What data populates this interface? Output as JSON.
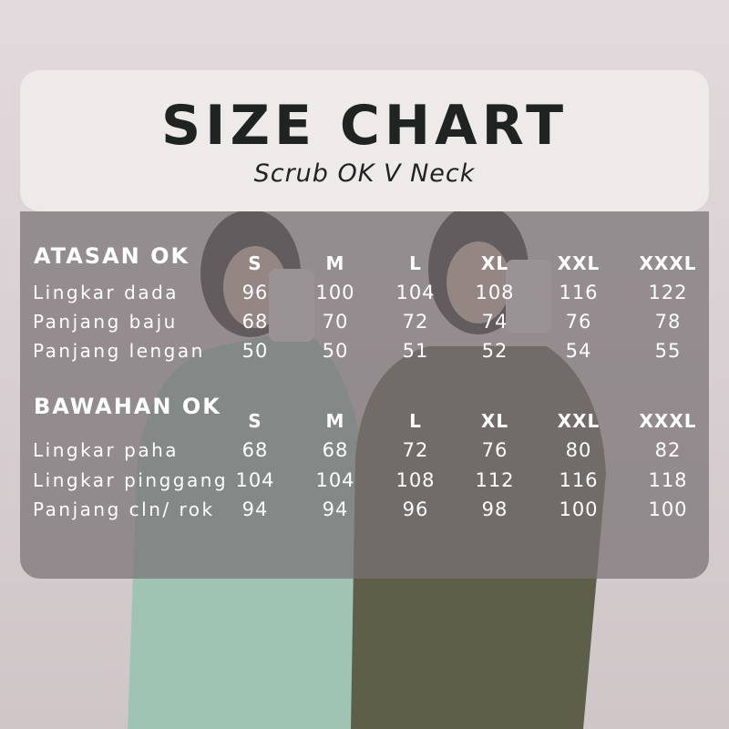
{
  "header": {
    "title": "SIZE CHART",
    "subtitle": "Scrub OK V Neck"
  },
  "sizes": [
    "S",
    "M",
    "L",
    "XL",
    "XXL",
    "XXXL"
  ],
  "atasan": {
    "title": "ATASAN OK",
    "rows": [
      {
        "label": "Lingkar dada",
        "values": [
          "96",
          "100",
          "104",
          "108",
          "116",
          "122"
        ]
      },
      {
        "label": "Panjang baju",
        "values": [
          "68",
          "70",
          "72",
          "74",
          "76",
          "78"
        ]
      },
      {
        "label": "Panjang lengan",
        "values": [
          "50",
          "50",
          "51",
          "52",
          "54",
          "55"
        ]
      }
    ]
  },
  "bawahan": {
    "title": "BAWAHAN OK",
    "rows": [
      {
        "label": "Lingkar paha",
        "values": [
          "68",
          "68",
          "72",
          "76",
          "80",
          "82"
        ]
      },
      {
        "label": "Lingkar pinggang",
        "values": [
          "104",
          "104",
          "108",
          "112",
          "116",
          "118"
        ]
      },
      {
        "label": "Panjang cln/ rok",
        "values": [
          "94",
          "94",
          "96",
          "98",
          "100",
          "100"
        ]
      }
    ]
  },
  "colors": {
    "scrub_left": "#9fc4b4",
    "scrub_right": "#5e5f48",
    "text_dark": "#1f2321"
  }
}
